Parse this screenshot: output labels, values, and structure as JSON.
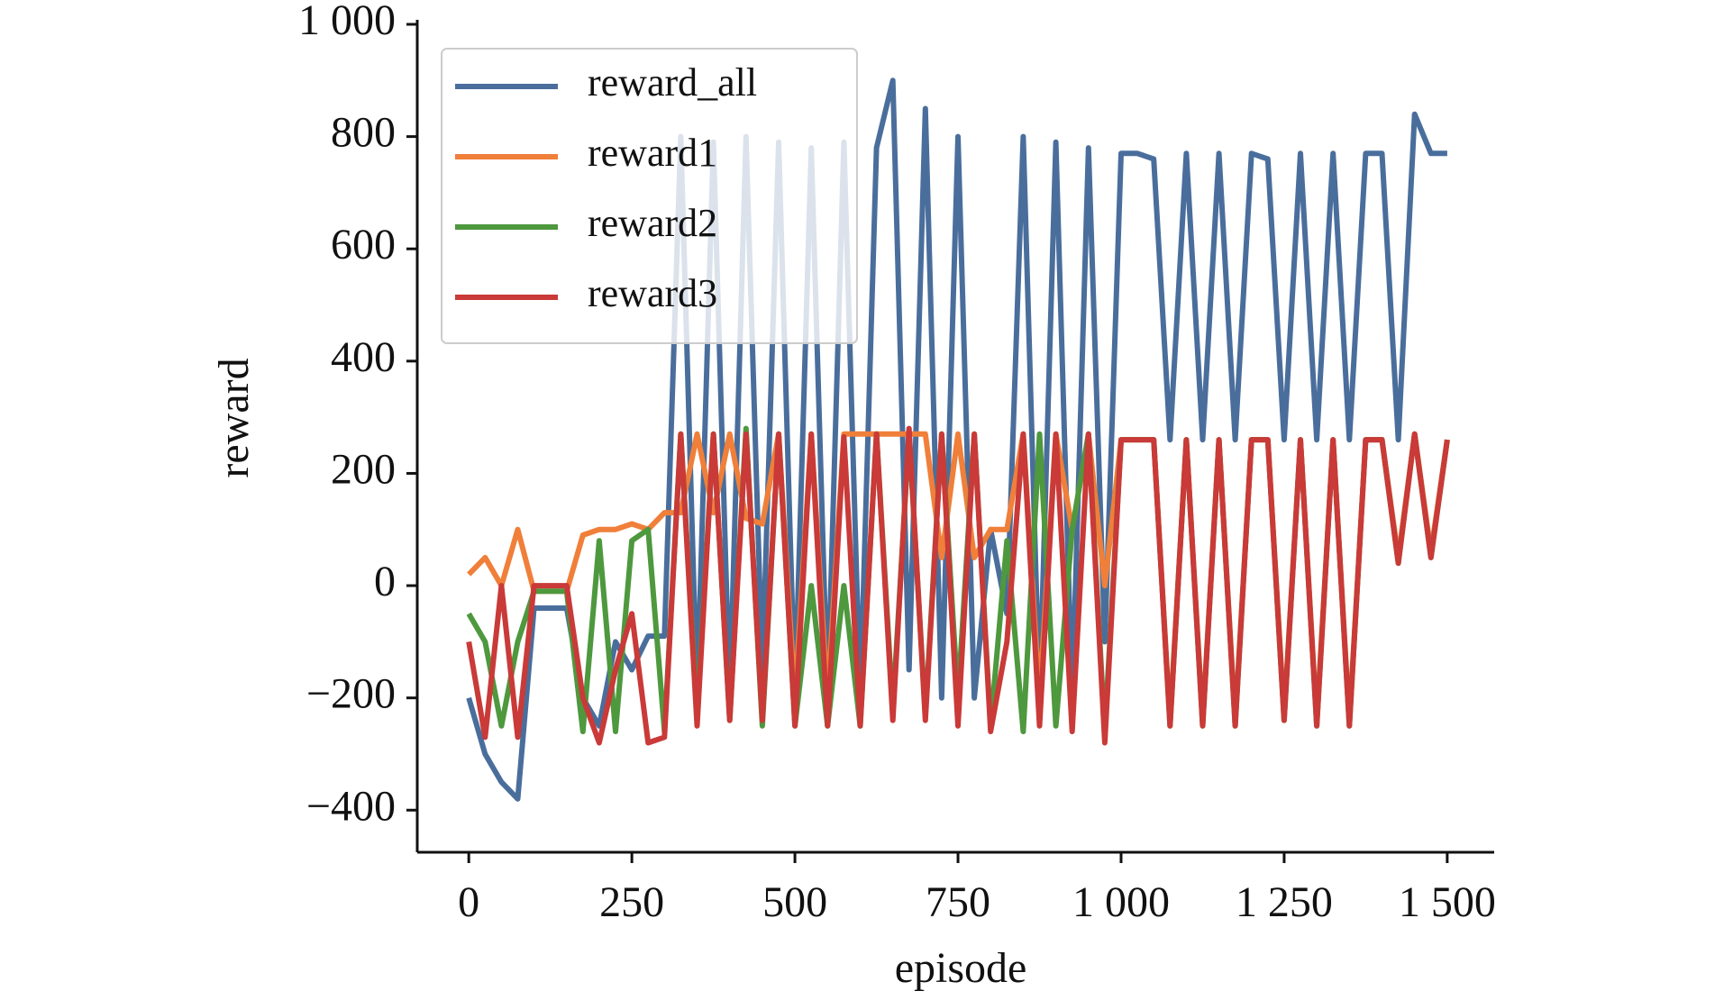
{
  "chart_data": {
    "type": "line",
    "xlabel": "episode",
    "ylabel": "reward",
    "x": [
      0,
      25,
      50,
      75,
      100,
      125,
      150,
      175,
      200,
      225,
      250,
      275,
      300,
      325,
      350,
      375,
      400,
      425,
      450,
      475,
      500,
      525,
      550,
      575,
      600,
      625,
      650,
      675,
      700,
      725,
      750,
      775,
      800,
      825,
      850,
      875,
      900,
      925,
      950,
      975,
      1000,
      1025,
      1050,
      1075,
      1100,
      1125,
      1150,
      1175,
      1200,
      1225,
      1250,
      1275,
      1300,
      1325,
      1350,
      1375,
      1400,
      1425,
      1450,
      1475,
      1500
    ],
    "series": [
      {
        "name": "reward_all",
        "color": "#4a6e9c",
        "values": [
          -200,
          -300,
          -350,
          -380,
          -40,
          -40,
          -40,
          -200,
          -250,
          -100,
          -150,
          -90,
          -90,
          800,
          -200,
          790,
          -200,
          800,
          -150,
          790,
          -200,
          780,
          -200,
          790,
          -200,
          780,
          900,
          -150,
          850,
          -200,
          800,
          -200,
          100,
          -50,
          800,
          -200,
          790,
          -200,
          780,
          -100,
          770,
          770,
          760,
          260,
          770,
          260,
          770,
          260,
          770,
          760,
          260,
          770,
          260,
          770,
          260,
          770,
          770,
          260,
          840,
          770,
          770
        ]
      },
      {
        "name": "reward1",
        "color": "#f07f3a",
        "values": [
          20,
          50,
          0,
          100,
          -10,
          -10,
          -10,
          90,
          100,
          100,
          110,
          100,
          130,
          130,
          270,
          130,
          270,
          120,
          110,
          270,
          -200,
          270,
          -200,
          270,
          270,
          270,
          270,
          270,
          270,
          50,
          270,
          50,
          100,
          100,
          270,
          -200,
          270,
          100,
          270,
          0,
          260,
          260,
          260,
          -240,
          260,
          -240,
          260,
          -240,
          260,
          260,
          -230,
          260,
          -240,
          260,
          -240,
          260,
          260,
          50,
          270,
          60,
          260
        ]
      },
      {
        "name": "reward2",
        "color": "#4e983e",
        "values": [
          -50,
          -100,
          -250,
          -100,
          -10,
          -10,
          -10,
          -260,
          80,
          -260,
          80,
          100,
          -260,
          270,
          -230,
          270,
          -240,
          280,
          -250,
          270,
          -250,
          0,
          -250,
          0,
          -250,
          270,
          -220,
          270,
          -230,
          270,
          -200,
          270,
          -250,
          80,
          -260,
          270,
          -250,
          100,
          270,
          -260,
          260,
          260,
          260,
          -250,
          260,
          -250,
          260,
          -250,
          260,
          260,
          -240,
          260,
          -250,
          260,
          -250,
          260,
          260,
          40,
          270,
          50,
          260
        ]
      },
      {
        "name": "reward3",
        "color": "#c93a38",
        "values": [
          -100,
          -270,
          0,
          -270,
          0,
          0,
          0,
          -200,
          -280,
          -150,
          -50,
          -280,
          -270,
          270,
          -250,
          270,
          -240,
          270,
          -240,
          270,
          -250,
          270,
          -250,
          265,
          -250,
          270,
          -240,
          280,
          -240,
          270,
          -250,
          270,
          -260,
          -100,
          270,
          -250,
          270,
          -260,
          270,
          -280,
          260,
          260,
          260,
          -250,
          260,
          -250,
          260,
          -250,
          260,
          260,
          -240,
          260,
          -250,
          260,
          -250,
          260,
          260,
          40,
          270,
          50,
          260
        ]
      }
    ],
    "xlim": [
      -79,
      1572
    ],
    "ylim": [
      -475,
      1000
    ],
    "xticks": [
      0,
      250,
      500,
      750,
      {
        "value": 1000,
        "label": "1 000"
      },
      {
        "value": 1250,
        "label": "1 250"
      },
      {
        "value": 1500,
        "label": "1 500"
      }
    ],
    "yticks": [
      {
        "value": -400,
        "label": "−400"
      },
      {
        "value": -200,
        "label": "−200"
      },
      0,
      200,
      400,
      600,
      800,
      {
        "value": 1000,
        "label": "1 000"
      }
    ],
    "legend": "upper left"
  }
}
